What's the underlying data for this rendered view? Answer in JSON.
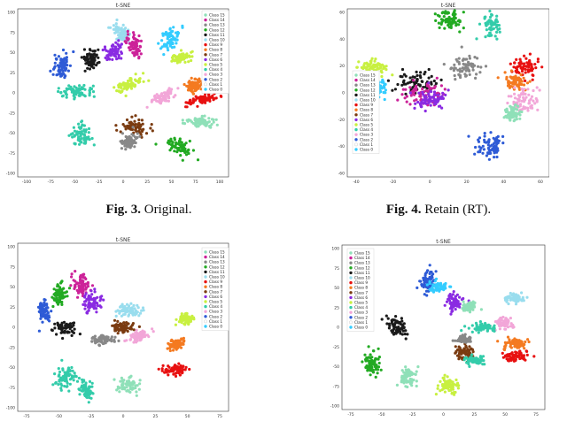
{
  "palette": [
    "#33ccff",
    "#ffffff",
    "#2e5bd6",
    "#f2a6d8",
    "#33ccaa",
    "#c8f040",
    "#8a2be2",
    "#7a3b10",
    "#f47a20",
    "#e81010",
    "#99ddee",
    "#1a1a1a",
    "#22aa22",
    "#888888",
    "#cc2299",
    "#8fe0b8"
  ],
  "captions": [
    {
      "fig": "Fig. 3.",
      "text": " Original."
    },
    {
      "fig": "Fig. 4.",
      "text": " Retain (RT)."
    }
  ],
  "chart_data": [
    {
      "type": "scatter",
      "title": "t-SNE",
      "xlim": [
        -100,
        100
      ],
      "ylim": [
        -100,
        100
      ],
      "xticks": [
        "-100",
        "-75",
        "-50",
        "-25",
        "0",
        "25",
        "50",
        "75",
        "100"
      ],
      "yticks": [
        "100",
        "75",
        "50",
        "25",
        "0",
        "-25",
        "-50",
        "-75",
        "-100"
      ],
      "grid": false,
      "legend": "top-right",
      "legend_labels": [
        "Class 15",
        "Class 14",
        "Class 13",
        "Class 12",
        "Class 11",
        "Class 10",
        "Class 9",
        "Class 8",
        "Class 7",
        "Class 6",
        "Class 5",
        "Class 4",
        "Class 3",
        "Class 2",
        "Class 1",
        "Class 0"
      ],
      "clusters": [
        {
          "c": 0,
          "x": 45,
          "y": 65,
          "w": 8,
          "h": 16,
          "a": -30
        },
        {
          "c": 10,
          "x": -3,
          "y": 70,
          "w": 7,
          "h": 12,
          "a": 30
        },
        {
          "c": 2,
          "x": -58,
          "y": 32,
          "w": 8,
          "h": 14,
          "a": 0
        },
        {
          "c": 11,
          "x": -30,
          "y": 40,
          "w": 7,
          "h": 12,
          "a": 0
        },
        {
          "c": 6,
          "x": -8,
          "y": 50,
          "w": 9,
          "h": 12,
          "a": -25
        },
        {
          "c": 14,
          "x": 10,
          "y": 56,
          "w": 7,
          "h": 14,
          "a": 20
        },
        {
          "c": 4,
          "x": -45,
          "y": 2,
          "w": 16,
          "h": 7,
          "a": 0
        },
        {
          "c": 5,
          "x": 5,
          "y": 10,
          "w": 15,
          "h": 7,
          "a": 30
        },
        {
          "c": 5,
          "x": 55,
          "y": 42,
          "w": 10,
          "h": 6,
          "a": 15
        },
        {
          "c": 3,
          "x": 38,
          "y": -5,
          "w": 14,
          "h": 6,
          "a": 45
        },
        {
          "c": 8,
          "x": 67,
          "y": 8,
          "w": 9,
          "h": 7,
          "a": 40
        },
        {
          "c": 9,
          "x": 75,
          "y": -8,
          "w": 15,
          "h": 6,
          "a": 20
        },
        {
          "c": 15,
          "x": 75,
          "y": -35,
          "w": 16,
          "h": 6,
          "a": 0
        },
        {
          "c": 4,
          "x": -40,
          "y": -50,
          "w": 10,
          "h": 13,
          "a": 20
        },
        {
          "c": 7,
          "x": 10,
          "y": -40,
          "w": 13,
          "h": 11,
          "a": 0
        },
        {
          "c": 13,
          "x": 5,
          "y": -58,
          "w": 9,
          "h": 10,
          "a": 0
        },
        {
          "c": 12,
          "x": 55,
          "y": -65,
          "w": 14,
          "h": 8,
          "a": -25
        }
      ]
    },
    {
      "type": "scatter",
      "title": "t-SNE",
      "xlim": [
        -60,
        60
      ],
      "ylim": [
        -60,
        60
      ],
      "xticks": [
        "-40",
        "-20",
        "0",
        "20",
        "40",
        "60"
      ],
      "yticks": [
        "60",
        "40",
        "20",
        "0",
        "-20",
        "-40",
        "-60"
      ],
      "grid": false,
      "legend": "left",
      "legend_labels": [
        "Class 15",
        "Class 14",
        "Class 13",
        "Class 12",
        "Class 11",
        "Class 10",
        "Class 9",
        "Class 8",
        "Class 7",
        "Class 6",
        "Class 5",
        "Class 4",
        "Class 3",
        "Class 2",
        "Class 1",
        "Class 0"
      ],
      "clusters": [
        {
          "c": 12,
          "x": 0,
          "y": 52,
          "w": 8,
          "h": 7,
          "a": -20
        },
        {
          "c": 4,
          "x": 25,
          "y": 48,
          "w": 5,
          "h": 7,
          "a": 0
        },
        {
          "c": 5,
          "x": -45,
          "y": 18,
          "w": 8,
          "h": 5,
          "a": 0
        },
        {
          "c": 13,
          "x": 10,
          "y": 18,
          "w": 9,
          "h": 8,
          "a": 0
        },
        {
          "c": 11,
          "x": -20,
          "y": 8,
          "w": 14,
          "h": 8,
          "a": 0
        },
        {
          "c": 14,
          "x": -15,
          "y": 0,
          "w": 14,
          "h": 8,
          "a": 0
        },
        {
          "c": 6,
          "x": -10,
          "y": -5,
          "w": 11,
          "h": 7,
          "a": 10
        },
        {
          "c": 0,
          "x": -42,
          "y": 5,
          "w": 6,
          "h": 8,
          "a": 0
        },
        {
          "c": 9,
          "x": 45,
          "y": 18,
          "w": 8,
          "h": 8,
          "a": 0
        },
        {
          "c": 8,
          "x": 40,
          "y": 8,
          "w": 6,
          "h": 5,
          "a": 0
        },
        {
          "c": 3,
          "x": 45,
          "y": -6,
          "w": 9,
          "h": 9,
          "a": 0
        },
        {
          "c": 15,
          "x": 38,
          "y": -15,
          "w": 5,
          "h": 5,
          "a": 0
        },
        {
          "c": 2,
          "x": 25,
          "y": -38,
          "w": 9,
          "h": 10,
          "a": 0
        }
      ]
    },
    {
      "type": "scatter",
      "title": "t-SNE",
      "xlim": [
        -100,
        100
      ],
      "ylim": [
        -100,
        100
      ],
      "xticks": [
        "-75",
        "-50",
        "-25",
        "0",
        "25",
        "50",
        "75"
      ],
      "yticks": [
        "100",
        "75",
        "50",
        "25",
        "0",
        "-25",
        "-50",
        "-75",
        "-100"
      ],
      "grid": false,
      "legend": "top-right",
      "legend_labels": [
        "Class 15",
        "Class 14",
        "Class 13",
        "Class 12",
        "Class 11",
        "Class 10",
        "Class 9",
        "Class 8",
        "Class 7",
        "Class 6",
        "Class 5",
        "Class 4",
        "Class 3",
        "Class 2",
        "Class 1",
        "Class 0"
      ],
      "clusters": [
        {
          "c": 2,
          "x": -75,
          "y": 20,
          "w": 6,
          "h": 14,
          "a": 0
        },
        {
          "c": 12,
          "x": -60,
          "y": 40,
          "w": 6,
          "h": 12,
          "a": 0
        },
        {
          "c": 14,
          "x": -40,
          "y": 50,
          "w": 7,
          "h": 12,
          "a": 0
        },
        {
          "c": 6,
          "x": -30,
          "y": 30,
          "w": 9,
          "h": 12,
          "a": 0
        },
        {
          "c": 10,
          "x": 5,
          "y": 20,
          "w": 12,
          "h": 7,
          "a": 0
        },
        {
          "c": 11,
          "x": -55,
          "y": 0,
          "w": 10,
          "h": 8,
          "a": 0
        },
        {
          "c": 7,
          "x": 0,
          "y": 0,
          "w": 10,
          "h": 7,
          "a": 0
        },
        {
          "c": 13,
          "x": -20,
          "y": -15,
          "w": 14,
          "h": 6,
          "a": 0
        },
        {
          "c": 3,
          "x": 15,
          "y": -10,
          "w": 10,
          "h": 6,
          "a": 20
        },
        {
          "c": 5,
          "x": 60,
          "y": 10,
          "w": 8,
          "h": 6,
          "a": 0
        },
        {
          "c": 8,
          "x": 50,
          "y": -20,
          "w": 8,
          "h": 6,
          "a": 20
        },
        {
          "c": 9,
          "x": 50,
          "y": -50,
          "w": 12,
          "h": 6,
          "a": 0
        },
        {
          "c": 4,
          "x": -55,
          "y": -60,
          "w": 9,
          "h": 14,
          "a": -20
        },
        {
          "c": 4,
          "x": -35,
          "y": -75,
          "w": 6,
          "h": 12,
          "a": 20
        },
        {
          "c": 15,
          "x": 5,
          "y": -70,
          "w": 10,
          "h": 10,
          "a": 0
        }
      ]
    },
    {
      "type": "scatter",
      "title": "t-SNE",
      "xlim": [
        -100,
        100
      ],
      "ylim": [
        -100,
        100
      ],
      "xticks": [
        "-75",
        "-50",
        "-25",
        "0",
        "25",
        "50",
        "75"
      ],
      "yticks": [
        "100",
        "75",
        "50",
        "25",
        "0",
        "-25",
        "-50",
        "-75",
        "-100"
      ],
      "grid": false,
      "legend": "top-left",
      "legend_labels": [
        "Class 15",
        "Class 14",
        "Class 13",
        "Class 12",
        "Class 11",
        "Class 10",
        "Class 9",
        "Class 8",
        "Class 7",
        "Class 6",
        "Class 5",
        "Class 4",
        "Class 3",
        "Class 2",
        "Class 1",
        "Class 0"
      ],
      "clusters": [
        {
          "c": 2,
          "x": -15,
          "y": 55,
          "w": 8,
          "h": 14,
          "a": 0
        },
        {
          "c": 0,
          "x": -5,
          "y": 50,
          "w": 10,
          "h": 6,
          "a": 0
        },
        {
          "c": 6,
          "x": 10,
          "y": 30,
          "w": 9,
          "h": 12,
          "a": 0
        },
        {
          "c": 15,
          "x": 25,
          "y": 25,
          "w": 7,
          "h": 6,
          "a": 0
        },
        {
          "c": 10,
          "x": 70,
          "y": 35,
          "w": 10,
          "h": 6,
          "a": 0
        },
        {
          "c": 11,
          "x": -45,
          "y": 0,
          "w": 10,
          "h": 12,
          "a": 0
        },
        {
          "c": 3,
          "x": 60,
          "y": 5,
          "w": 8,
          "h": 6,
          "a": 0
        },
        {
          "c": 4,
          "x": 40,
          "y": 0,
          "w": 13,
          "h": 6,
          "a": 0
        },
        {
          "c": 8,
          "x": 70,
          "y": -20,
          "w": 12,
          "h": 6,
          "a": 0
        },
        {
          "c": 9,
          "x": 70,
          "y": -35,
          "w": 12,
          "h": 6,
          "a": 0
        },
        {
          "c": 7,
          "x": 20,
          "y": -30,
          "w": 10,
          "h": 10,
          "a": 0
        },
        {
          "c": 4,
          "x": 30,
          "y": -40,
          "w": 12,
          "h": 6,
          "a": 0
        },
        {
          "c": 13,
          "x": 20,
          "y": -15,
          "w": 8,
          "h": 5,
          "a": 0
        },
        {
          "c": 12,
          "x": -70,
          "y": -45,
          "w": 8,
          "h": 14,
          "a": 0
        },
        {
          "c": 15,
          "x": -35,
          "y": -60,
          "w": 7,
          "h": 12,
          "a": 0
        },
        {
          "c": 5,
          "x": 5,
          "y": -70,
          "w": 9,
          "h": 9,
          "a": 0
        }
      ]
    }
  ]
}
